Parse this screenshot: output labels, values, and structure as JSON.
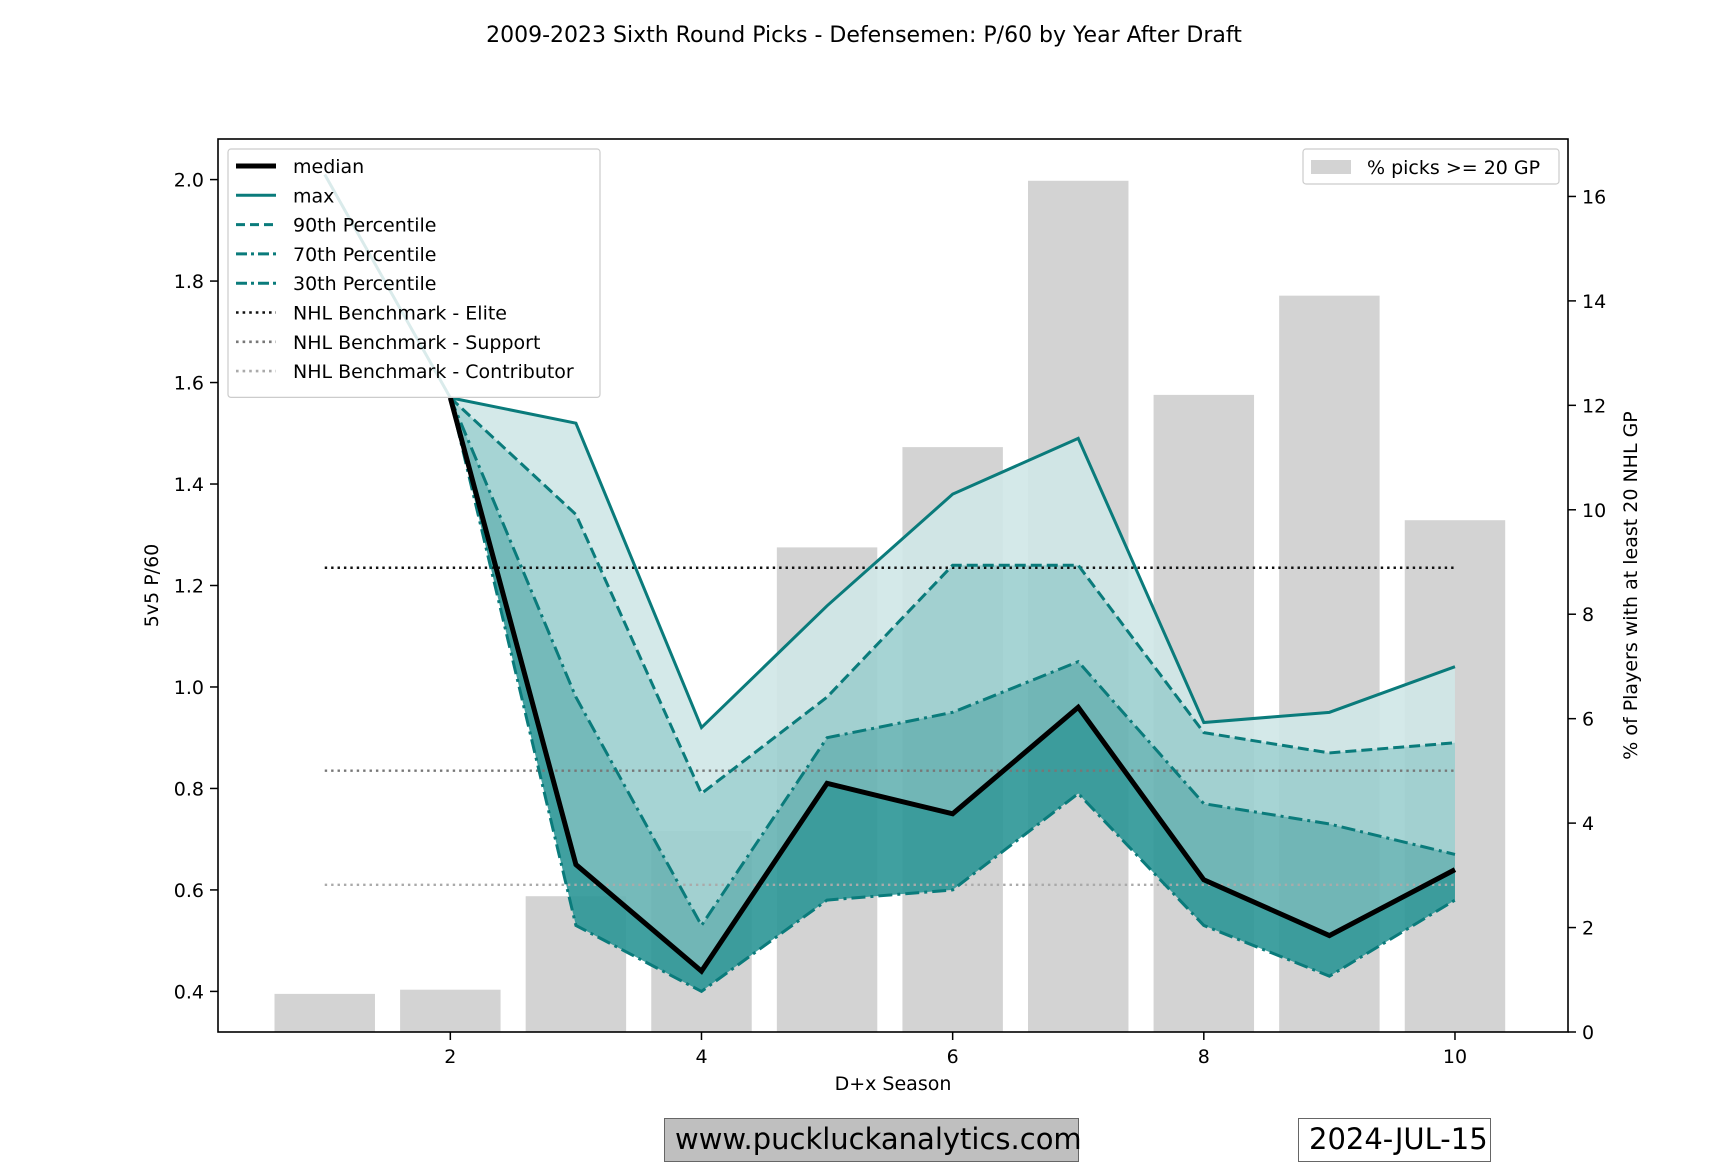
{
  "chart_data": {
    "type": "line",
    "title": "2009-2023 Sixth Round Picks - Defensemen: P/60 by Year After Draft",
    "xlabel": "D+x Season",
    "ylabel": "5v5 P/60",
    "y2label": "% of Players with at least 20 NHL GP",
    "xlim": [
      0.15,
      10.9
    ],
    "ylim": [
      0.32,
      2.08
    ],
    "y2lim": [
      0,
      17.1
    ],
    "x_ticks": [
      2,
      4,
      6,
      8,
      10
    ],
    "y_ticks": [
      0.4,
      0.6,
      0.8,
      1.0,
      1.2,
      1.4,
      1.6,
      1.8,
      2.0
    ],
    "y2_ticks": [
      0,
      2,
      4,
      6,
      8,
      10,
      12,
      14,
      16
    ],
    "x": [
      1,
      2,
      3,
      4,
      5,
      6,
      7,
      8,
      9,
      10
    ],
    "series": [
      {
        "name": "median",
        "style": "solid-thick",
        "color": "#000000",
        "values": [
          null,
          1.57,
          0.65,
          0.44,
          0.81,
          0.75,
          0.96,
          0.62,
          0.51,
          0.64
        ]
      },
      {
        "name": "max",
        "style": "solid",
        "color": "#0a7b7b",
        "values": [
          2.01,
          1.57,
          1.52,
          0.92,
          1.16,
          1.38,
          1.49,
          0.93,
          0.95,
          1.04
        ]
      },
      {
        "name": "90th Percentile",
        "style": "dashed",
        "color": "#0a7b7b",
        "values": [
          null,
          1.57,
          1.34,
          0.79,
          0.98,
          1.24,
          1.24,
          0.91,
          0.87,
          0.89
        ]
      },
      {
        "name": "70th Percentile",
        "style": "dashdot",
        "color": "#0a7b7b",
        "values": [
          null,
          1.57,
          0.98,
          0.53,
          0.9,
          0.95,
          1.05,
          0.77,
          0.73,
          0.67
        ]
      },
      {
        "name": "30th Percentile",
        "style": "dashdot",
        "color": "#0a7b7b",
        "values": [
          null,
          1.57,
          0.53,
          0.4,
          0.58,
          0.6,
          0.79,
          0.53,
          0.43,
          0.58
        ]
      }
    ],
    "benchmarks": [
      {
        "name": "NHL Benchmark - Elite",
        "value": 1.235,
        "color": "#111111"
      },
      {
        "name": "NHL Benchmark - Support",
        "value": 0.835,
        "color": "#777777"
      },
      {
        "name": "NHL Benchmark - Contributor",
        "value": 0.61,
        "color": "#aaaaaa"
      }
    ],
    "bars": {
      "name": "% picks >= 20 GP",
      "color": "#d3d3d3",
      "values": [
        0.73,
        0.81,
        2.6,
        3.85,
        9.28,
        11.2,
        16.3,
        12.2,
        14.1,
        9.8
      ]
    },
    "band_colors": {
      "max_to_p90": "#cfe7e7",
      "p90_to_p70": "#9ccfcf",
      "p70_to_median": "#66b3b3",
      "median_to_p30": "#2b9696"
    },
    "legend_left": "top-left",
    "legend_right": "top-right",
    "grid": false
  },
  "footer": {
    "website": "www.puckluckanalytics.com",
    "date": "2024-JUL-15"
  }
}
